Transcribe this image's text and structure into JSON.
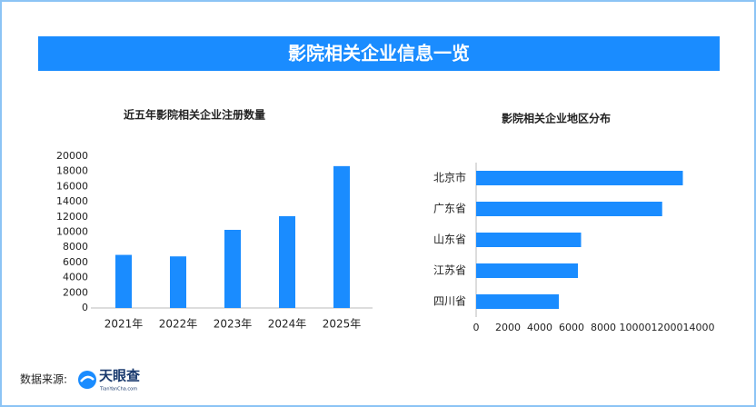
{
  "header": {
    "title": "影院相关企业信息一览"
  },
  "chart_data": [
    {
      "type": "bar",
      "title": "近五年影院相关企业注册数量",
      "categories": [
        "2021年",
        "2022年",
        "2023年",
        "2024年",
        "2025年"
      ],
      "values": [
        7000,
        6800,
        10300,
        12100,
        18700
      ],
      "color": "#1a8cff",
      "ylim": [
        0,
        20000
      ],
      "yticks": [
        0,
        2000,
        4000,
        6000,
        8000,
        10000,
        12000,
        14000,
        16000,
        18000,
        20000
      ],
      "grid": false
    },
    {
      "type": "barh",
      "title": "影院相关企业地区分布",
      "categories": [
        "北京市",
        "广东省",
        "山东省",
        "江苏省",
        "四川省"
      ],
      "values": [
        13000,
        11700,
        6600,
        6400,
        5200
      ],
      "color": "#1a8cff",
      "xlim": [
        0,
        14000
      ],
      "xticks": [
        0,
        2000,
        4000,
        6000,
        8000,
        10000,
        12000,
        14000
      ],
      "grid": false
    }
  ],
  "footer": {
    "source_label": "数据来源:",
    "logo_text": "天眼查",
    "logo_sub": "TianYanCha.com"
  }
}
